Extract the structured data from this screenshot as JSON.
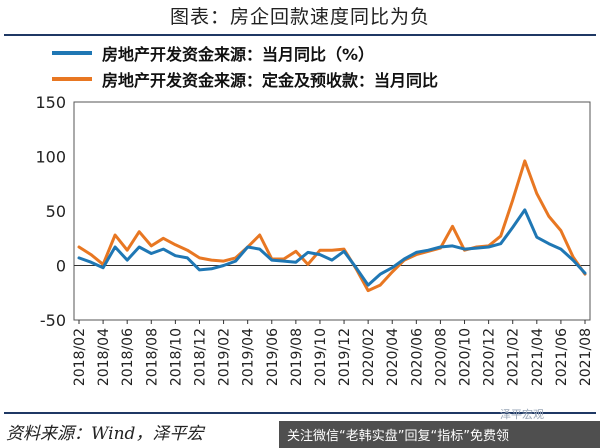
{
  "header": {
    "title": "图表：房企回款速度同比为负"
  },
  "source": {
    "text": "资料来源：Wind，泽平宏"
  },
  "banner": {
    "text": "关注微信“老韩实盘”回复“指标”免费领",
    "watermark": "泽平宏观"
  },
  "chart_data": {
    "type": "line",
    "title": "图表：房企回款速度同比为负",
    "ylim": [
      -50,
      150
    ],
    "yticks": [
      -50,
      0,
      50,
      100,
      150
    ],
    "grid": false,
    "legend_position": "top-left",
    "x": [
      "2018/02",
      "2018/03",
      "2018/04",
      "2018/05",
      "2018/06",
      "2018/07",
      "2018/08",
      "2018/09",
      "2018/10",
      "2018/11",
      "2018/12",
      "2019/01",
      "2019/02",
      "2019/03",
      "2019/04",
      "2019/05",
      "2019/06",
      "2019/07",
      "2019/08",
      "2019/09",
      "2019/10",
      "2019/11",
      "2019/12",
      "2020/01",
      "2020/02",
      "2020/03",
      "2020/04",
      "2020/05",
      "2020/06",
      "2020/07",
      "2020/08",
      "2020/09",
      "2020/10",
      "2020/11",
      "2020/12",
      "2021/01",
      "2021/02",
      "2021/03",
      "2021/04",
      "2021/05",
      "2021/06",
      "2021/07",
      "2021/08"
    ],
    "xtick_labels": [
      "2018/02",
      "2018/04",
      "2018/06",
      "2018/08",
      "2018/10",
      "2018/12",
      "2019/02",
      "2019/04",
      "2019/06",
      "2019/08",
      "2019/10",
      "2019/12",
      "2020/02",
      "2020/04",
      "2020/06",
      "2020/08",
      "2020/10",
      "2020/12",
      "2021/02",
      "2021/04",
      "2021/06",
      "2021/08"
    ],
    "series": [
      {
        "name": "房地产开发资金来源：当月同比（%）",
        "color": "#1f77b4",
        "values": [
          7,
          3,
          -2,
          17,
          5,
          17,
          11,
          15,
          9,
          7,
          -4,
          -3,
          0,
          4,
          17,
          15,
          5,
          4,
          3,
          12,
          10,
          5,
          13,
          -2,
          -18,
          -8,
          -2,
          6,
          12,
          14,
          17,
          18,
          15,
          16,
          17,
          20,
          35,
          51,
          26,
          20,
          15,
          5,
          -7
        ]
      },
      {
        "name": "房地产开发资金来源：定金及预收款：当月同比",
        "color": "#e87722",
        "values": [
          17,
          10,
          1,
          28,
          14,
          31,
          18,
          25,
          19,
          14,
          7,
          5,
          4,
          7,
          17,
          28,
          6,
          6,
          13,
          1,
          14,
          14,
          15,
          -3,
          -23,
          -18,
          -6,
          5,
          10,
          13,
          16,
          36,
          14,
          17,
          18,
          27,
          60,
          96,
          66,
          45,
          32,
          8,
          -8
        ]
      }
    ]
  }
}
